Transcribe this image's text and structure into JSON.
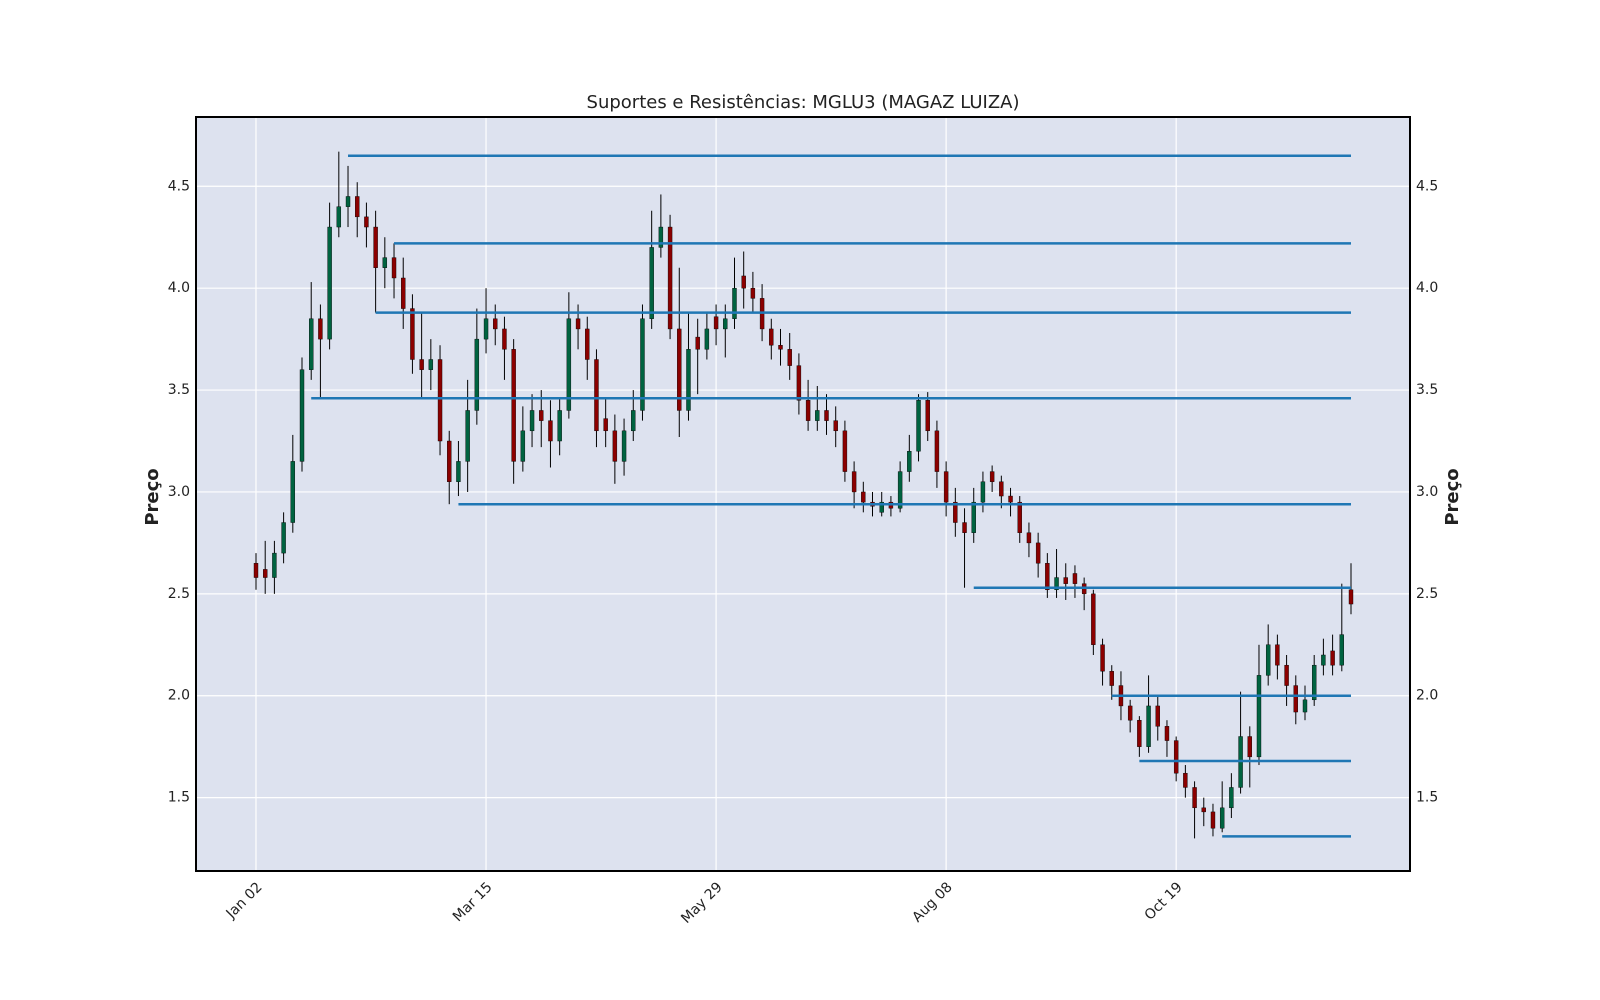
{
  "chart_data": {
    "type": "candlestick",
    "title": "Suportes e Resistências: MGLU3 (MAGAZ LUIZA)",
    "y_label": "Preço",
    "categories": [
      "Jan 02",
      null,
      null,
      null,
      null,
      null,
      null,
      null,
      null,
      null,
      null,
      null,
      null,
      null,
      null,
      null,
      null,
      null,
      null,
      null,
      null,
      null,
      null,
      null,
      null,
      "Mar 15",
      null,
      null,
      null,
      null,
      null,
      null,
      null,
      null,
      null,
      null,
      null,
      null,
      null,
      null,
      null,
      null,
      null,
      null,
      null,
      null,
      null,
      null,
      null,
      null,
      "May 29",
      null,
      null,
      null,
      null,
      null,
      null,
      null,
      null,
      null,
      null,
      null,
      null,
      null,
      null,
      null,
      null,
      null,
      null,
      null,
      null,
      null,
      null,
      null,
      null,
      "Aug 08",
      null,
      null,
      null,
      null,
      null,
      null,
      null,
      null,
      null,
      null,
      null,
      null,
      null,
      null,
      null,
      null,
      null,
      null,
      null,
      null,
      null,
      null,
      null,
      null,
      "Oct 19",
      null,
      null,
      null,
      null,
      null,
      null,
      null,
      null,
      null,
      null,
      null,
      null,
      null,
      null,
      null,
      null,
      null,
      null,
      null
    ],
    "open": [
      2.65,
      2.62,
      2.58,
      2.7,
      2.85,
      3.15,
      3.6,
      3.85,
      3.75,
      4.3,
      4.4,
      4.45,
      4.35,
      4.3,
      4.1,
      4.15,
      4.05,
      3.9,
      3.65,
      3.6,
      3.65,
      3.25,
      3.05,
      3.15,
      3.4,
      3.75,
      3.85,
      3.8,
      3.7,
      3.15,
      3.3,
      3.4,
      3.35,
      3.25,
      3.4,
      3.85,
      3.8,
      3.65,
      3.36,
      3.3,
      3.15,
      3.3,
      3.4,
      3.85,
      4.2,
      4.3,
      3.8,
      3.4,
      3.76,
      3.7,
      3.86,
      3.8,
      3.85,
      4.06,
      4.0,
      3.95,
      3.8,
      3.72,
      3.7,
      3.62,
      3.45,
      3.35,
      3.4,
      3.35,
      3.3,
      3.1,
      3.0,
      2.95,
      2.9,
      2.95,
      2.92,
      3.1,
      3.2,
      3.45,
      3.3,
      3.1,
      2.95,
      2.85,
      2.8,
      2.95,
      3.1,
      3.05,
      2.98,
      2.95,
      2.8,
      2.75,
      2.65,
      2.52,
      2.58,
      2.6,
      2.55,
      2.5,
      2.25,
      2.12,
      2.05,
      1.95,
      1.88,
      1.75,
      1.95,
      1.85,
      1.78,
      1.62,
      1.55,
      1.45,
      1.43,
      1.35,
      1.45,
      1.55,
      1.8,
      1.7,
      2.1,
      2.25,
      2.15,
      2.05,
      1.92,
      1.98,
      2.15,
      2.22,
      2.15,
      2.52
    ],
    "high": [
      2.7,
      2.76,
      2.76,
      2.9,
      3.28,
      3.66,
      4.03,
      3.92,
      4.42,
      4.67,
      4.6,
      4.52,
      4.42,
      4.38,
      4.25,
      4.22,
      4.15,
      3.97,
      3.88,
      3.75,
      3.72,
      3.3,
      3.25,
      3.55,
      3.9,
      4.0,
      3.92,
      3.86,
      3.75,
      3.42,
      3.48,
      3.5,
      3.45,
      3.46,
      3.98,
      3.92,
      3.86,
      3.7,
      3.46,
      3.38,
      3.36,
      3.5,
      3.92,
      4.38,
      4.46,
      4.36,
      4.1,
      3.88,
      3.85,
      3.88,
      3.92,
      3.92,
      4.15,
      4.18,
      4.08,
      4.02,
      3.85,
      3.8,
      3.78,
      3.68,
      3.55,
      3.52,
      3.48,
      3.42,
      3.35,
      3.15,
      3.05,
      3.0,
      3.0,
      2.98,
      3.15,
      3.28,
      3.48,
      3.49,
      3.35,
      3.15,
      3.02,
      2.92,
      3.02,
      3.1,
      3.13,
      3.08,
      3.02,
      2.98,
      2.85,
      2.8,
      2.7,
      2.72,
      2.65,
      2.64,
      2.58,
      2.52,
      2.28,
      2.15,
      2.12,
      1.98,
      1.9,
      2.1,
      2.0,
      1.88,
      1.8,
      1.66,
      1.58,
      1.5,
      1.47,
      1.58,
      1.62,
      2.02,
      1.85,
      2.25,
      2.35,
      2.3,
      2.2,
      2.1,
      2.05,
      2.2,
      2.28,
      2.3,
      2.55,
      2.65
    ],
    "low": [
      2.52,
      2.5,
      2.5,
      2.65,
      2.8,
      3.1,
      3.55,
      3.46,
      3.7,
      4.25,
      4.3,
      4.25,
      4.2,
      3.88,
      4.0,
      3.95,
      3.8,
      3.58,
      3.46,
      3.5,
      3.18,
      2.94,
      2.98,
      3.0,
      3.33,
      3.68,
      3.72,
      3.55,
      3.04,
      3.1,
      3.22,
      3.22,
      3.12,
      3.18,
      3.36,
      3.7,
      3.55,
      3.22,
      3.22,
      3.04,
      3.08,
      3.25,
      3.35,
      3.8,
      4.15,
      3.75,
      3.27,
      3.35,
      3.48,
      3.65,
      3.72,
      3.66,
      3.8,
      3.9,
      3.88,
      3.74,
      3.65,
      3.62,
      3.55,
      3.38,
      3.3,
      3.3,
      3.28,
      3.22,
      3.05,
      2.92,
      2.9,
      2.88,
      2.88,
      2.88,
      2.9,
      3.05,
      3.15,
      3.25,
      3.02,
      2.88,
      2.78,
      2.53,
      2.75,
      2.9,
      3.0,
      2.92,
      2.88,
      2.75,
      2.68,
      2.58,
      2.48,
      2.48,
      2.47,
      2.48,
      2.42,
      2.2,
      2.05,
      1.98,
      1.88,
      1.82,
      1.7,
      1.72,
      1.78,
      1.7,
      1.58,
      1.5,
      1.3,
      1.36,
      1.31,
      1.33,
      1.4,
      1.52,
      1.55,
      1.66,
      2.05,
      2.08,
      1.95,
      1.86,
      1.88,
      1.95,
      2.1,
      2.1,
      2.12,
      2.4
    ],
    "close": [
      2.58,
      2.58,
      2.7,
      2.85,
      3.15,
      3.6,
      3.85,
      3.75,
      4.3,
      4.4,
      4.45,
      4.35,
      4.3,
      4.1,
      4.15,
      4.05,
      3.9,
      3.65,
      3.6,
      3.65,
      3.25,
      3.05,
      3.15,
      3.4,
      3.75,
      3.85,
      3.8,
      3.7,
      3.15,
      3.3,
      3.4,
      3.35,
      3.25,
      3.4,
      3.85,
      3.8,
      3.65,
      3.3,
      3.3,
      3.15,
      3.3,
      3.4,
      3.85,
      4.2,
      4.3,
      3.8,
      3.4,
      3.7,
      3.7,
      3.8,
      3.8,
      3.85,
      4.0,
      4.0,
      3.95,
      3.8,
      3.72,
      3.7,
      3.62,
      3.45,
      3.35,
      3.4,
      3.35,
      3.3,
      3.1,
      3.0,
      2.95,
      2.93,
      2.95,
      2.92,
      3.1,
      3.2,
      3.45,
      3.3,
      3.1,
      2.95,
      2.85,
      2.8,
      2.95,
      3.05,
      3.05,
      2.98,
      2.95,
      2.8,
      2.75,
      2.65,
      2.52,
      2.58,
      2.55,
      2.55,
      2.5,
      2.25,
      2.12,
      2.05,
      1.95,
      1.88,
      1.75,
      1.95,
      1.85,
      1.78,
      1.62,
      1.55,
      1.45,
      1.43,
      1.35,
      1.45,
      1.55,
      1.8,
      1.7,
      2.1,
      2.25,
      2.15,
      2.05,
      1.92,
      1.98,
      2.15,
      2.2,
      2.15,
      2.3,
      2.45
    ],
    "up_color": "#006340",
    "down_color": "#8b0000",
    "levels": [
      {
        "value": 4.65,
        "start": 10
      },
      {
        "value": 4.22,
        "start": 15
      },
      {
        "value": 3.88,
        "start": 13
      },
      {
        "value": 3.46,
        "start": 6
      },
      {
        "value": 2.94,
        "start": 22
      },
      {
        "value": 2.53,
        "start": 78
      },
      {
        "value": 2.0,
        "start": 93
      },
      {
        "value": 1.68,
        "start": 96
      },
      {
        "value": 1.31,
        "start": 105
      }
    ],
    "level_color": "#1f77b4",
    "ylim": [
      1.14,
      4.84
    ],
    "yticks": [
      1.5,
      {
        "value": 2,
        "label": "2.0"
      },
      2.5,
      {
        "value": 3,
        "label": "3.0"
      },
      3.5,
      {
        "value": 4,
        "label": "4.0"
      },
      4.5
    ],
    "grid": true
  }
}
